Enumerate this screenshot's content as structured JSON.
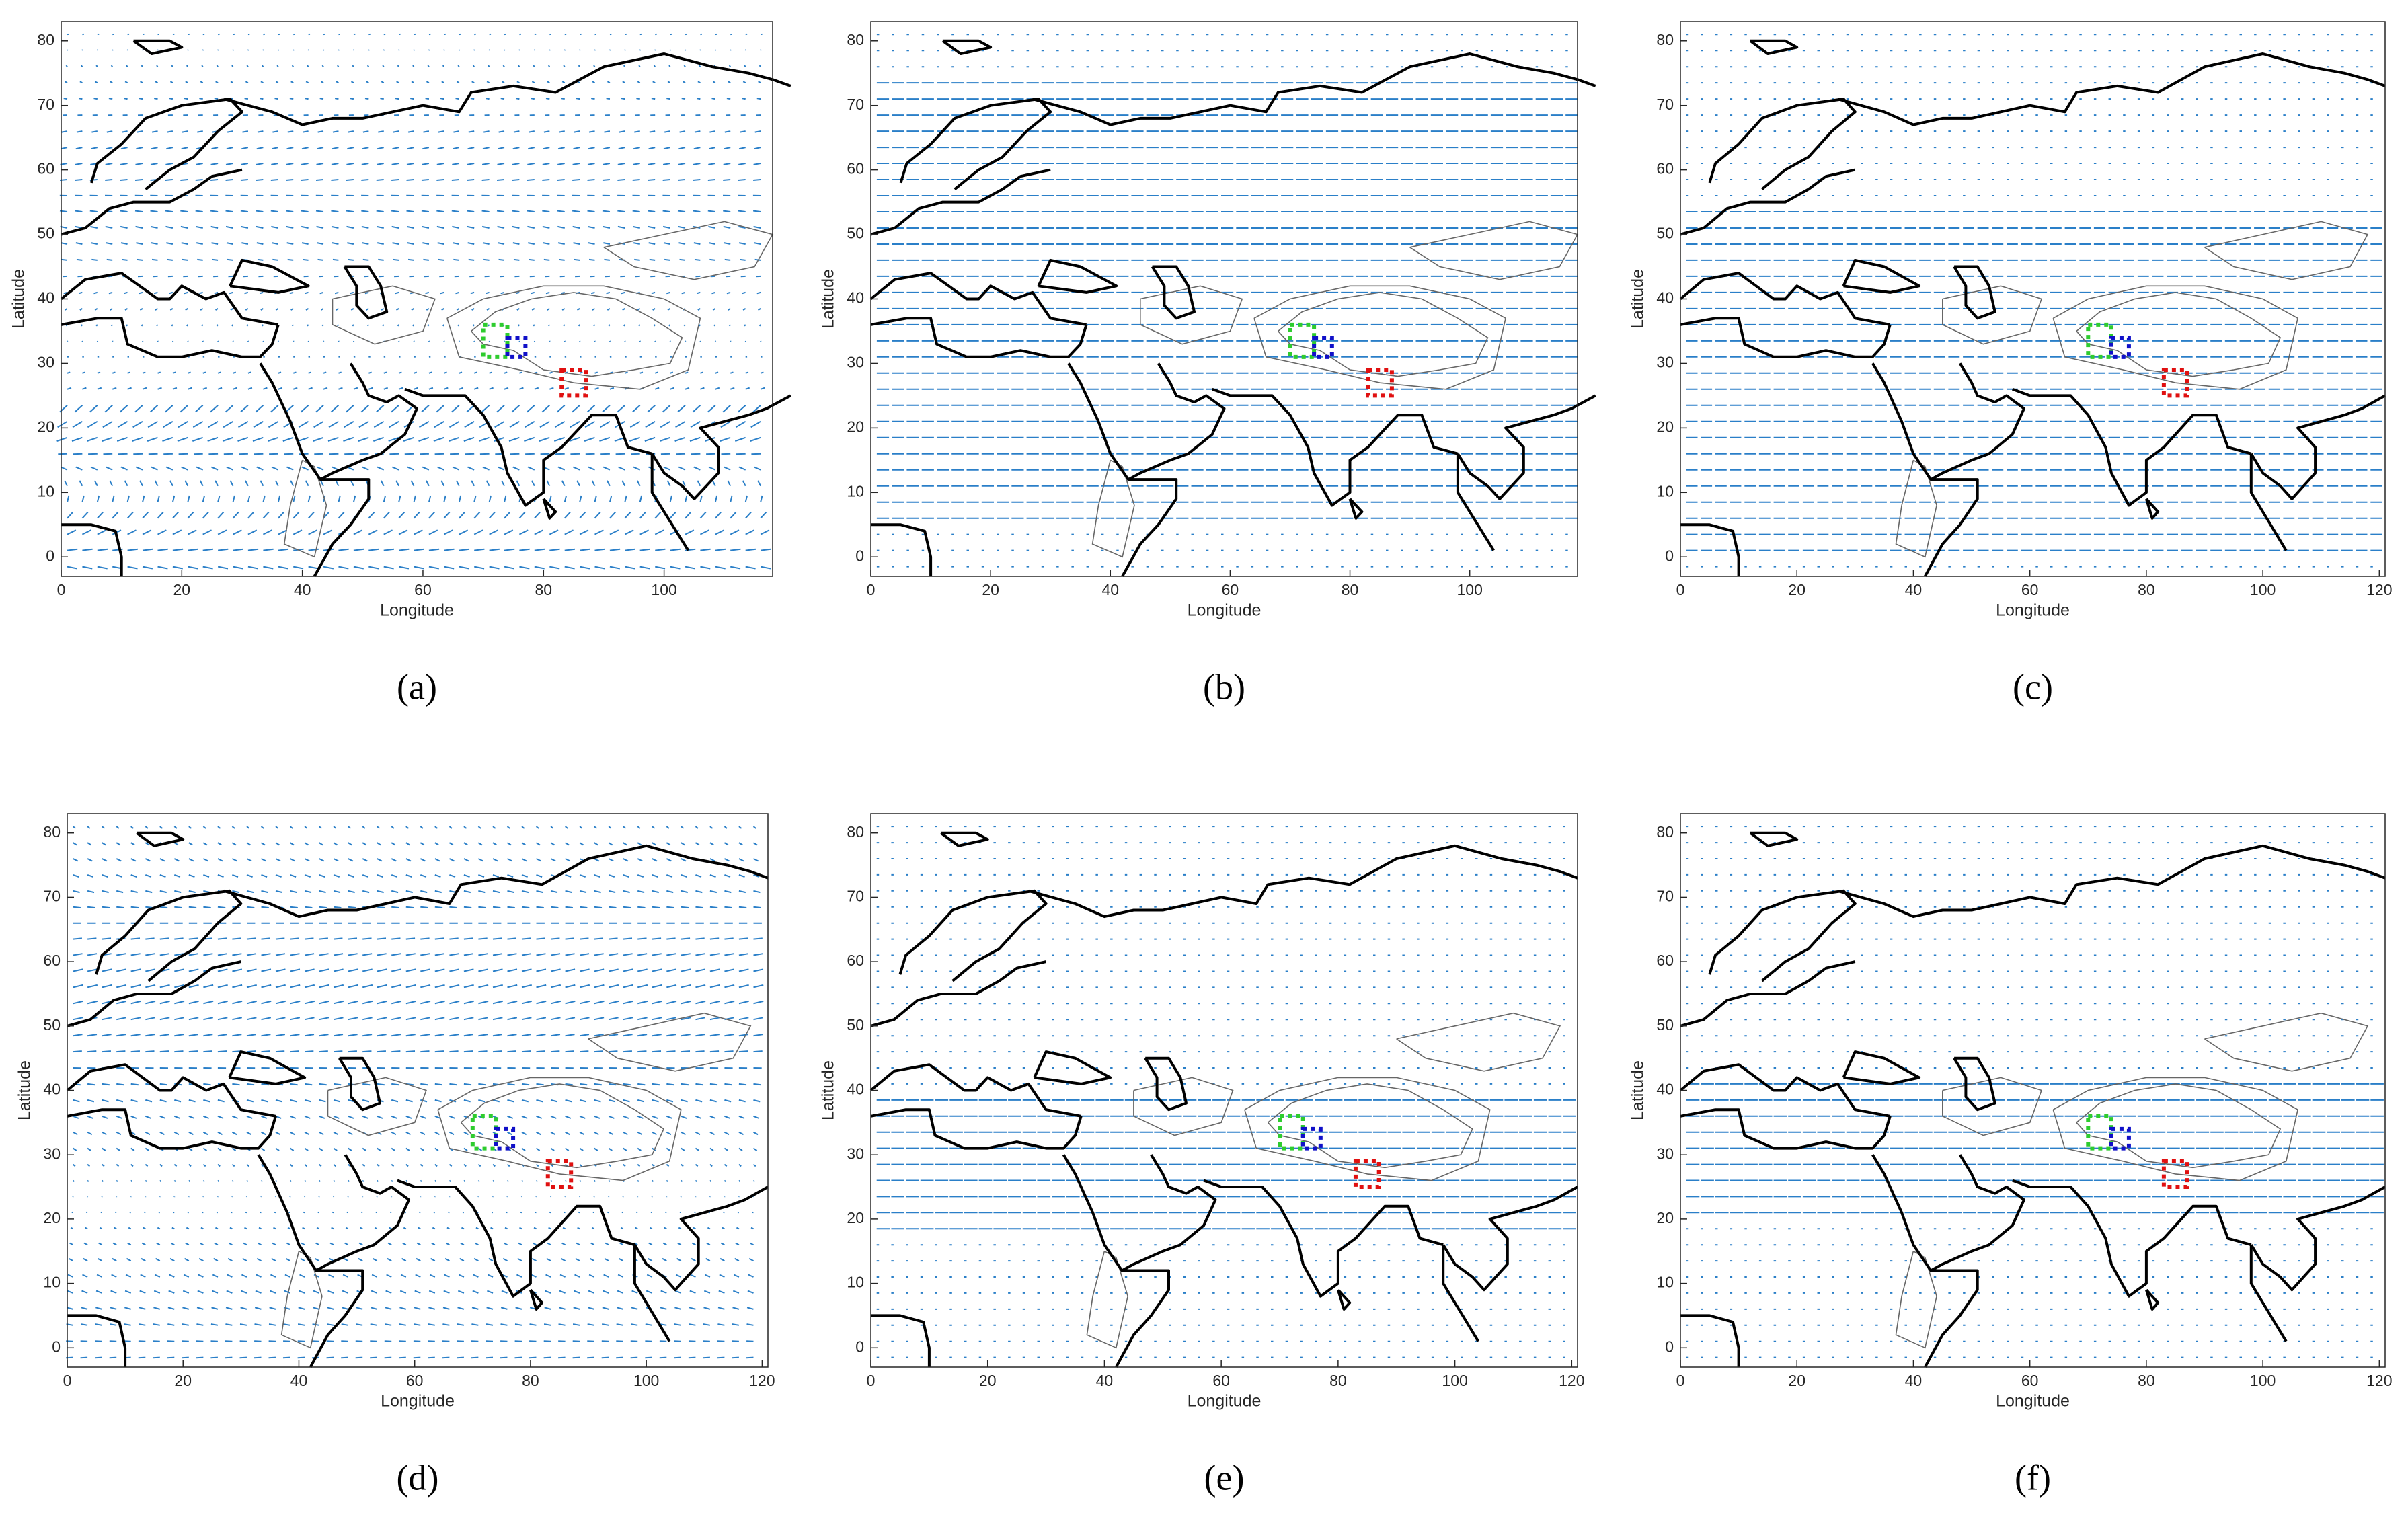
{
  "chart_data": [
    {
      "type": "map",
      "caption": "(a)",
      "xlabel": "Longitude",
      "ylabel": "Latitude",
      "xlim": [
        0,
        118
      ],
      "xticks": [
        0,
        20,
        40,
        60,
        80,
        100
      ],
      "ylim": [
        -3,
        83
      ],
      "yticks": [
        0,
        10,
        20,
        30,
        40,
        50,
        60,
        70,
        80
      ]
    },
    {
      "type": "map",
      "caption": "(b)",
      "xlabel": "Longitude",
      "ylabel": "Latitude",
      "xlim": [
        0,
        118
      ],
      "xticks": [
        0,
        20,
        40,
        60,
        80,
        100
      ],
      "ylim": [
        -3,
        83
      ],
      "yticks": [
        0,
        10,
        20,
        30,
        40,
        50,
        60,
        70,
        80
      ]
    },
    {
      "type": "map",
      "caption": "(c)",
      "xlabel": "Longitude",
      "ylabel": "Latitude",
      "xlim": [
        0,
        121
      ],
      "xticks": [
        0,
        20,
        40,
        60,
        80,
        100,
        120
      ],
      "ylim": [
        -3,
        83
      ],
      "yticks": [
        0,
        10,
        20,
        30,
        40,
        50,
        60,
        70,
        80
      ]
    },
    {
      "type": "map",
      "caption": "(d)",
      "xlabel": "Longitude",
      "ylabel": "Latitude",
      "xlim": [
        0,
        121
      ],
      "xticks": [
        0,
        20,
        40,
        60,
        80,
        100,
        120
      ],
      "ylim": [
        -3,
        83
      ],
      "yticks": [
        0,
        10,
        20,
        30,
        40,
        50,
        60,
        70,
        80
      ]
    },
    {
      "type": "map",
      "caption": "(e)",
      "xlabel": "Longitude",
      "ylabel": "Latitude",
      "xlim": [
        0,
        121
      ],
      "xticks": [
        0,
        20,
        40,
        60,
        80,
        100,
        120
      ],
      "ylim": [
        -3,
        83
      ],
      "yticks": [
        0,
        10,
        20,
        30,
        40,
        50,
        60,
        70,
        80
      ]
    },
    {
      "type": "map",
      "caption": "(f)",
      "xlabel": "Longitude",
      "ylabel": "Latitude",
      "xlim": [
        0,
        121
      ],
      "xticks": [
        0,
        20,
        40,
        60,
        80,
        100,
        120
      ],
      "ylim": [
        -3,
        83
      ],
      "yticks": [
        0,
        10,
        20,
        30,
        40,
        50,
        60,
        70,
        80
      ]
    }
  ]
}
